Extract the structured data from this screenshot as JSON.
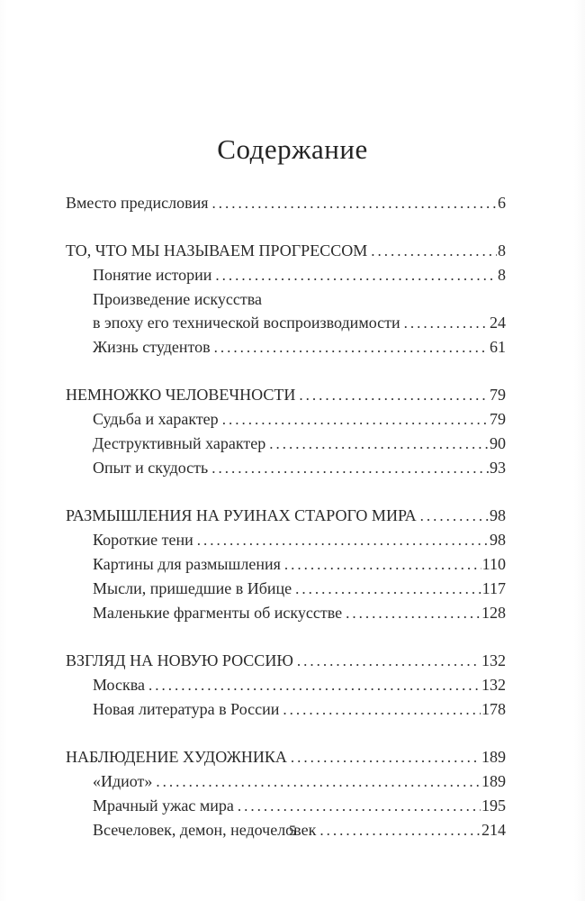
{
  "toc": {
    "title": "Содержание",
    "footer_page_number": "5",
    "text_color": "#2a2a2a",
    "background_color": "#ffffff",
    "sections": [
      {
        "entries": [
          {
            "label": "Вместо предисловия",
            "page": "6",
            "indent": 0
          }
        ]
      },
      {
        "entries": [
          {
            "label": "ТО, ЧТО МЫ НАЗЫВАЕМ ПРОГРЕССОМ",
            "page": "8",
            "indent": 0
          },
          {
            "label": "Понятие истории",
            "page": "8",
            "indent": 1
          },
          {
            "label": "Произведение искусства",
            "page": null,
            "indent": 1
          },
          {
            "label": "в эпоху его технической воспроизводимости",
            "page": "24",
            "indent": 1
          },
          {
            "label": "Жизнь студентов",
            "page": "61",
            "indent": 1
          }
        ]
      },
      {
        "entries": [
          {
            "label": "НЕМНОЖКО ЧЕЛОВЕЧНОСТИ",
            "page": "79",
            "indent": 0
          },
          {
            "label": "Судьба и характер",
            "page": "79",
            "indent": 1
          },
          {
            "label": "Деструктивный характер",
            "page": "90",
            "indent": 1
          },
          {
            "label": "Опыт и скудость",
            "page": "93",
            "indent": 1
          }
        ]
      },
      {
        "entries": [
          {
            "label": "РАЗМЫШЛЕНИЯ НА РУИНАХ СТАРОГО МИРА",
            "page": "98",
            "indent": 0
          },
          {
            "label": "Короткие тени",
            "page": "98",
            "indent": 1
          },
          {
            "label": "Картины для размышления",
            "page": "110",
            "indent": 1
          },
          {
            "label": "Мысли, пришедшие в Ибице",
            "page": "117",
            "indent": 1
          },
          {
            "label": "Маленькие фрагменты об искусстве",
            "page": "128",
            "indent": 1
          }
        ]
      },
      {
        "entries": [
          {
            "label": "ВЗГЛЯД НА НОВУЮ РОССИЮ",
            "page": "132",
            "indent": 0
          },
          {
            "label": "Москва",
            "page": "132",
            "indent": 1
          },
          {
            "label": "Новая литература в России",
            "page": "178",
            "indent": 1
          }
        ]
      },
      {
        "entries": [
          {
            "label": "НАБЛЮДЕНИЕ ХУДОЖНИКА",
            "page": "189",
            "indent": 0
          },
          {
            "label": "«Идиот»",
            "page": "189",
            "indent": 1
          },
          {
            "label": "Мрачный ужас мира",
            "page": "195",
            "indent": 1
          },
          {
            "label": "Всечеловек, демон, недочеловек",
            "page": "214",
            "indent": 1
          }
        ]
      }
    ]
  }
}
